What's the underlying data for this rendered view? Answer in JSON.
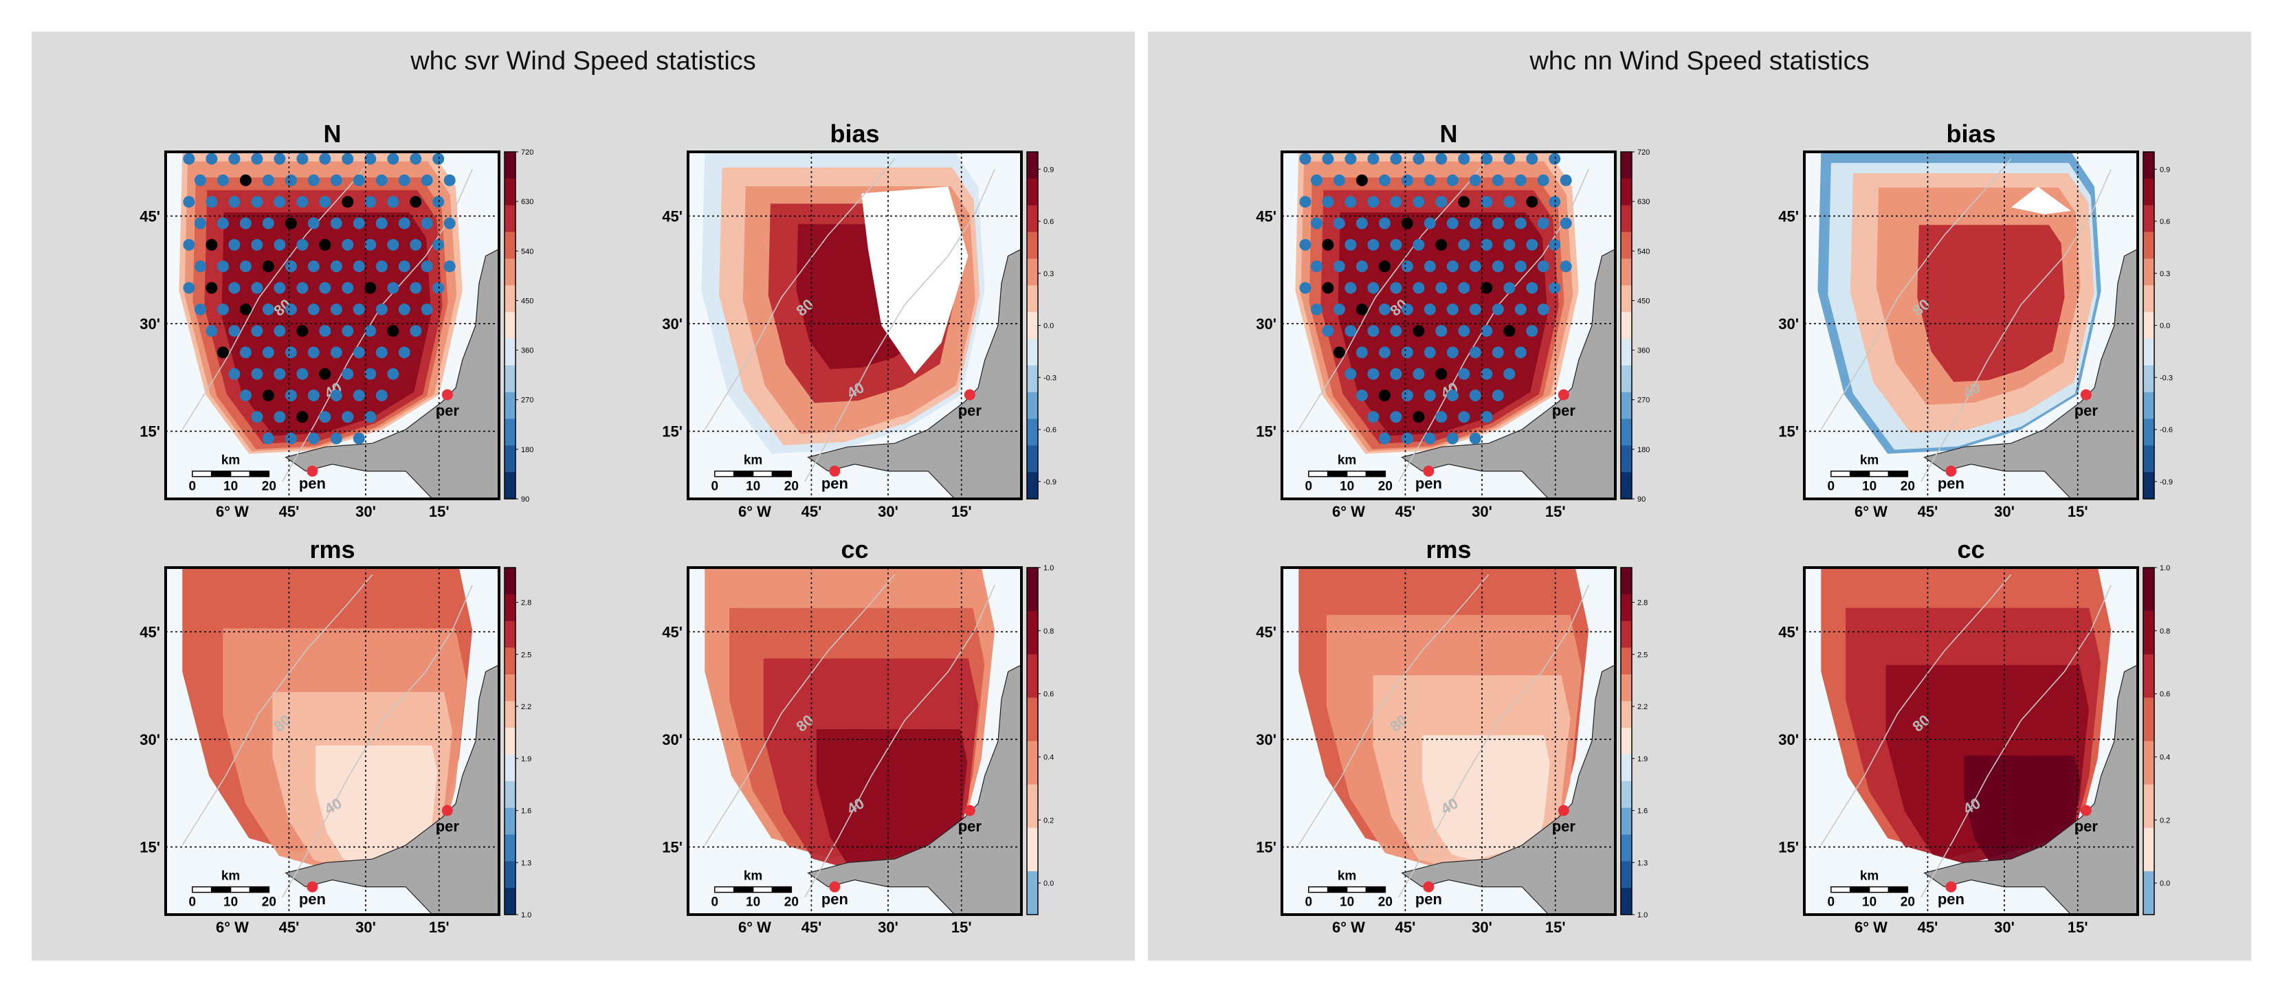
{
  "colors": {
    "panel_bg": "#dcdcdc",
    "sea": "#f2f8fb",
    "land": "#a8a8a8",
    "marker": "#e8303a",
    "station_blue": "#2b7bba",
    "station_black": "#000000",
    "diverging": [
      "#08306b",
      "#1f5a9a",
      "#3a7fbc",
      "#6aa6d1",
      "#a7cbe4",
      "#dbe9f4",
      "#fbe3d6",
      "#f6bea5",
      "#ec9276",
      "#d9614d",
      "#b92a33",
      "#8e0b1f",
      "#67001f"
    ]
  },
  "labels": {
    "lon_ticks": [
      "6° W",
      "45'",
      "30'",
      "15'"
    ],
    "lat_ticks": [
      "45'",
      "30'",
      "15'"
    ],
    "scalebar_title": "km",
    "scalebar_ticks": [
      "0",
      "10",
      "20"
    ],
    "place_per": "per",
    "place_pen": "pen",
    "contour_80": "80",
    "contour_40": "40"
  },
  "chart_data": [
    {
      "type": "heatmap",
      "figure_title": "whc svr Wind Speed statistics",
      "subplots": [
        {
          "title": "N",
          "colorbar_ticks": [
            "720",
            "630",
            "540",
            "450",
            "360",
            "270",
            "180",
            "90"
          ],
          "vmin": 90,
          "vmax": 720,
          "variant": "N"
        },
        {
          "title": "bias",
          "colorbar_ticks": [
            "0.9",
            "0.6",
            "0.3",
            "0.0",
            "-0.3",
            "-0.6",
            "-0.9"
          ],
          "vmin": -1.0,
          "vmax": 1.0,
          "variant": "bias_svr"
        },
        {
          "title": "rms",
          "colorbar_ticks": [
            "2.8",
            "2.5",
            "2.2",
            "1.9",
            "1.6",
            "1.3",
            "1.0"
          ],
          "vmin": 1.0,
          "vmax": 3.0,
          "variant": "rms_svr"
        },
        {
          "title": "cc",
          "colorbar_ticks": [
            "1.0",
            "0.8",
            "0.6",
            "0.4",
            "0.2",
            "0.0"
          ],
          "vmin": -0.1,
          "vmax": 1.0,
          "variant": "cc_svr"
        }
      ]
    },
    {
      "type": "heatmap",
      "figure_title": "whc nn Wind Speed statistics",
      "subplots": [
        {
          "title": "N",
          "colorbar_ticks": [
            "720",
            "630",
            "540",
            "450",
            "360",
            "270",
            "180",
            "90"
          ],
          "vmin": 90,
          "vmax": 720,
          "variant": "N"
        },
        {
          "title": "bias",
          "colorbar_ticks": [
            "0.9",
            "0.6",
            "0.3",
            "0.0",
            "-0.3",
            "-0.6",
            "-0.9"
          ],
          "vmin": -1.0,
          "vmax": 1.0,
          "variant": "bias_nn"
        },
        {
          "title": "rms",
          "colorbar_ticks": [
            "2.8",
            "2.5",
            "2.2",
            "1.9",
            "1.6",
            "1.3",
            "1.0"
          ],
          "vmin": 1.0,
          "vmax": 3.0,
          "variant": "rms_nn"
        },
        {
          "title": "cc",
          "colorbar_ticks": [
            "1.0",
            "0.8",
            "0.6",
            "0.4",
            "0.2",
            "0.0"
          ],
          "vmin": -0.1,
          "vmax": 1.0,
          "variant": "cc_nn"
        }
      ]
    }
  ]
}
